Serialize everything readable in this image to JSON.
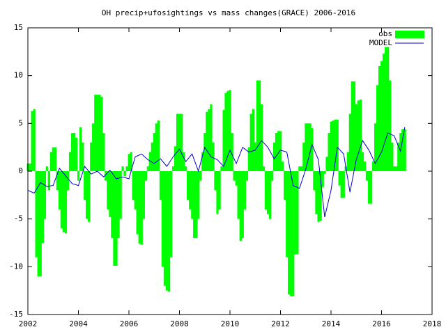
{
  "chart_data": {
    "type": "boxes-line",
    "title": "OH precip+ufosightings vs mass changes(GRACE) 2006-2016",
    "xlim": [
      2002,
      2018
    ],
    "xticks": [
      2002,
      2004,
      2006,
      2008,
      2010,
      2012,
      2014,
      2016,
      2018
    ],
    "ylim": [
      -15,
      15
    ],
    "yticks": [
      -15,
      -10,
      -5,
      0,
      5,
      10,
      15
    ],
    "legend": "top-right",
    "series": [
      {
        "name": "obs",
        "kind": "boxes",
        "color": "#00ff00",
        "x": [
          2002.0,
          2002.08,
          2002.17,
          2002.25,
          2002.33,
          2002.42,
          2002.5,
          2002.58,
          2002.67,
          2002.75,
          2002.83,
          2002.92,
          2003.0,
          2003.08,
          2003.17,
          2003.25,
          2003.33,
          2003.42,
          2003.5,
          2003.58,
          2003.67,
          2003.75,
          2003.83,
          2003.92,
          2004.0,
          2004.08,
          2004.17,
          2004.25,
          2004.33,
          2004.42,
          2004.5,
          2004.58,
          2004.67,
          2004.75,
          2004.83,
          2004.92,
          2005.0,
          2005.08,
          2005.17,
          2005.25,
          2005.33,
          2005.42,
          2005.5,
          2005.58,
          2005.67,
          2005.75,
          2005.83,
          2005.92,
          2006.0,
          2006.08,
          2006.17,
          2006.25,
          2006.33,
          2006.42,
          2006.5,
          2006.58,
          2006.67,
          2006.75,
          2006.83,
          2006.92,
          2007.0,
          2007.08,
          2007.17,
          2007.25,
          2007.33,
          2007.42,
          2007.5,
          2007.58,
          2007.67,
          2007.75,
          2007.83,
          2007.92,
          2008.0,
          2008.08,
          2008.17,
          2008.25,
          2008.33,
          2008.42,
          2008.5,
          2008.58,
          2008.67,
          2008.75,
          2008.83,
          2008.92,
          2009.0,
          2009.08,
          2009.17,
          2009.25,
          2009.33,
          2009.42,
          2009.5,
          2009.58,
          2009.67,
          2009.75,
          2009.83,
          2009.92,
          2010.0,
          2010.08,
          2010.17,
          2010.25,
          2010.33,
          2010.42,
          2010.5,
          2010.58,
          2010.67,
          2010.75,
          2010.83,
          2010.92,
          2011.0,
          2011.08,
          2011.17,
          2011.25,
          2011.33,
          2011.42,
          2011.5,
          2011.58,
          2011.67,
          2011.75,
          2011.83,
          2011.92,
          2012.0,
          2012.08,
          2012.17,
          2012.25,
          2012.33,
          2012.42,
          2012.5,
          2012.58,
          2012.67,
          2012.75,
          2012.83,
          2012.92,
          2013.0,
          2013.08,
          2013.17,
          2013.25,
          2013.33,
          2013.42,
          2013.5,
          2013.58,
          2013.67,
          2013.75,
          2013.83,
          2013.92,
          2014.0,
          2014.08,
          2014.17,
          2014.25,
          2014.33,
          2014.42,
          2014.5,
          2014.58,
          2014.67,
          2014.75,
          2014.83,
          2014.92,
          2015.0,
          2015.08,
          2015.17,
          2015.25,
          2015.33,
          2015.42,
          2015.5,
          2015.58,
          2015.67,
          2015.75,
          2015.83,
          2015.92,
          2016.0,
          2016.08,
          2016.17,
          2016.25,
          2016.33,
          2016.42,
          2016.5,
          2016.58,
          2016.67,
          2016.75,
          2016.83,
          2016.92
        ],
        "values": [
          0.8,
          0.8,
          6.3,
          6.5,
          -9,
          -11,
          -11,
          -7.5,
          -5,
          0.5,
          -2,
          2,
          2.5,
          2.5,
          -2,
          -4,
          -6,
          -6.4,
          -6.5,
          -2,
          2,
          4,
          4,
          3.5,
          -1,
          4.6,
          3,
          -3,
          -5,
          -5.3,
          3,
          5,
          8,
          8,
          8,
          7.8,
          4,
          -1,
          -4,
          -4.8,
          -7,
          -9.9,
          -9.9,
          -7,
          -5,
          0.5,
          -0.5,
          0.5,
          1.8,
          2,
          -3,
          -4,
          -6.6,
          -7.6,
          -7.7,
          -5,
          -1,
          0.5,
          2,
          3,
          4,
          5,
          5.3,
          -3,
          -10,
          -12,
          -12.5,
          -12.6,
          -9,
          0.5,
          2.6,
          6,
          6,
          6,
          2,
          0.5,
          -3,
          -4,
          -5,
          -7,
          -7,
          -5,
          -1,
          2,
          4,
          6.2,
          6.5,
          7,
          3,
          -2,
          -4.5,
          -4,
          0.5,
          6.4,
          8.2,
          8.4,
          8.5,
          4,
          -1,
          -1.5,
          -5,
          -7.3,
          -7,
          -4,
          -1,
          2.5,
          6,
          6.5,
          3,
          9.5,
          9.5,
          7,
          0.5,
          -4,
          -4.5,
          -5,
          -1,
          3,
          4,
          4.2,
          4.2,
          1,
          -3,
          -9,
          -12.9,
          -13.1,
          -13.1,
          -8.7,
          -8.7,
          0.5,
          0.5,
          3,
          5,
          5,
          5,
          4.5,
          -2,
          -4.5,
          -5.3,
          -5.2,
          -1.7,
          -0.3,
          1.5,
          4,
          5.2,
          5.3,
          5.4,
          5.4,
          -1.5,
          -2.8,
          -2.8,
          0.5,
          2,
          6,
          9.4,
          9.4,
          7,
          7.4,
          7.5,
          2,
          1,
          -1,
          -3.4,
          -3.4,
          1,
          5,
          9,
          11,
          11.5,
          12.3,
          13,
          13,
          9.5,
          3,
          0.5,
          0.5,
          3,
          4,
          4.4,
          4.4
        ]
      },
      {
        "name": "MODEL",
        "kind": "line",
        "color": "#0000cc",
        "x": [
          2002.0,
          2002.25,
          2002.5,
          2002.75,
          2003.0,
          2003.25,
          2003.5,
          2003.75,
          2004.0,
          2004.25,
          2004.5,
          2004.75,
          2005.0,
          2005.25,
          2005.5,
          2005.75,
          2006.0,
          2006.25,
          2006.5,
          2006.75,
          2007.0,
          2007.25,
          2007.5,
          2007.75,
          2008.0,
          2008.25,
          2008.5,
          2008.75,
          2009.0,
          2009.25,
          2009.5,
          2009.75,
          2010.0,
          2010.25,
          2010.5,
          2010.75,
          2011.0,
          2011.25,
          2011.5,
          2011.75,
          2012.0,
          2012.25,
          2012.5,
          2012.75,
          2013.0,
          2013.25,
          2013.5,
          2013.75,
          2014.0,
          2014.25,
          2014.5,
          2014.75,
          2015.0,
          2015.25,
          2015.5,
          2015.75,
          2016.0,
          2016.25,
          2016.5,
          2016.75,
          2016.92
        ],
        "values": [
          -2,
          -2.3,
          -1.2,
          -1.6,
          -1.5,
          0.3,
          -0.5,
          -1.3,
          -1.5,
          0.5,
          -0.3,
          0,
          -0.6,
          0.1,
          -0.8,
          -0.6,
          -0.8,
          1.5,
          1.8,
          1.2,
          0.8,
          1.3,
          0.5,
          1.5,
          2.3,
          1,
          1.8,
          0,
          2.5,
          1.5,
          1.2,
          0.5,
          2.2,
          0.8,
          2.5,
          2,
          2.2,
          3.2,
          2.5,
          1.3,
          2.2,
          2,
          -1.5,
          -1.8,
          0.2,
          2.8,
          1.2,
          -4.8,
          -2,
          2.5,
          1.8,
          -2.2,
          1.2,
          3.2,
          2.2,
          0.8,
          2,
          4,
          3.7,
          2.1,
          4.6
        ]
      }
    ]
  }
}
